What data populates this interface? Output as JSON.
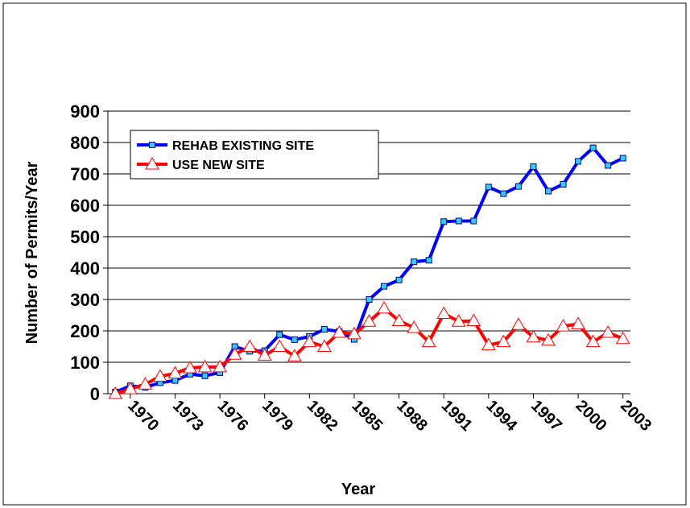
{
  "chart_data": {
    "type": "line",
    "x_label": "Year",
    "y_label": "Number of Permits/Year",
    "x": [
      1969,
      1970,
      1971,
      1972,
      1973,
      1974,
      1975,
      1976,
      1977,
      1978,
      1979,
      1980,
      1981,
      1982,
      1983,
      1984,
      1985,
      1986,
      1987,
      1988,
      1989,
      1990,
      1991,
      1992,
      1993,
      1994,
      1995,
      1996,
      1997,
      1998,
      1999,
      2000,
      2001,
      2002,
      2003
    ],
    "series": [
      {
        "name": "REHAB EXISTING SITE",
        "color": "#0000ff",
        "marker_color": "#33ccff",
        "values": [
          5,
          25,
          20,
          35,
          42,
          62,
          57,
          67,
          150,
          135,
          137,
          188,
          172,
          182,
          205,
          198,
          173,
          300,
          342,
          362,
          420,
          425,
          548,
          550,
          550,
          658,
          637,
          660,
          723,
          645,
          667,
          740,
          783,
          727,
          750
        ]
      },
      {
        "name": "USE NEW SITE",
        "color": "#ff0000",
        "marker_color": "#ffffff",
        "values": [
          0,
          15,
          30,
          55,
          65,
          82,
          85,
          85,
          125,
          150,
          122,
          150,
          120,
          165,
          150,
          195,
          190,
          230,
          272,
          232,
          210,
          165,
          255,
          230,
          232,
          155,
          165,
          220,
          180,
          170,
          215,
          222,
          165,
          195,
          175
        ]
      }
    ],
    "xlim": [
      1968.5,
      2003.5
    ],
    "xticks": [
      1970,
      1973,
      1976,
      1979,
      1982,
      1985,
      1988,
      1991,
      1994,
      1997,
      2000,
      2003
    ],
    "ylim": [
      0,
      900
    ],
    "yticks": [
      0,
      100,
      200,
      300,
      400,
      500,
      600,
      700,
      800,
      900
    ],
    "grid": true,
    "legend": "upper left"
  }
}
